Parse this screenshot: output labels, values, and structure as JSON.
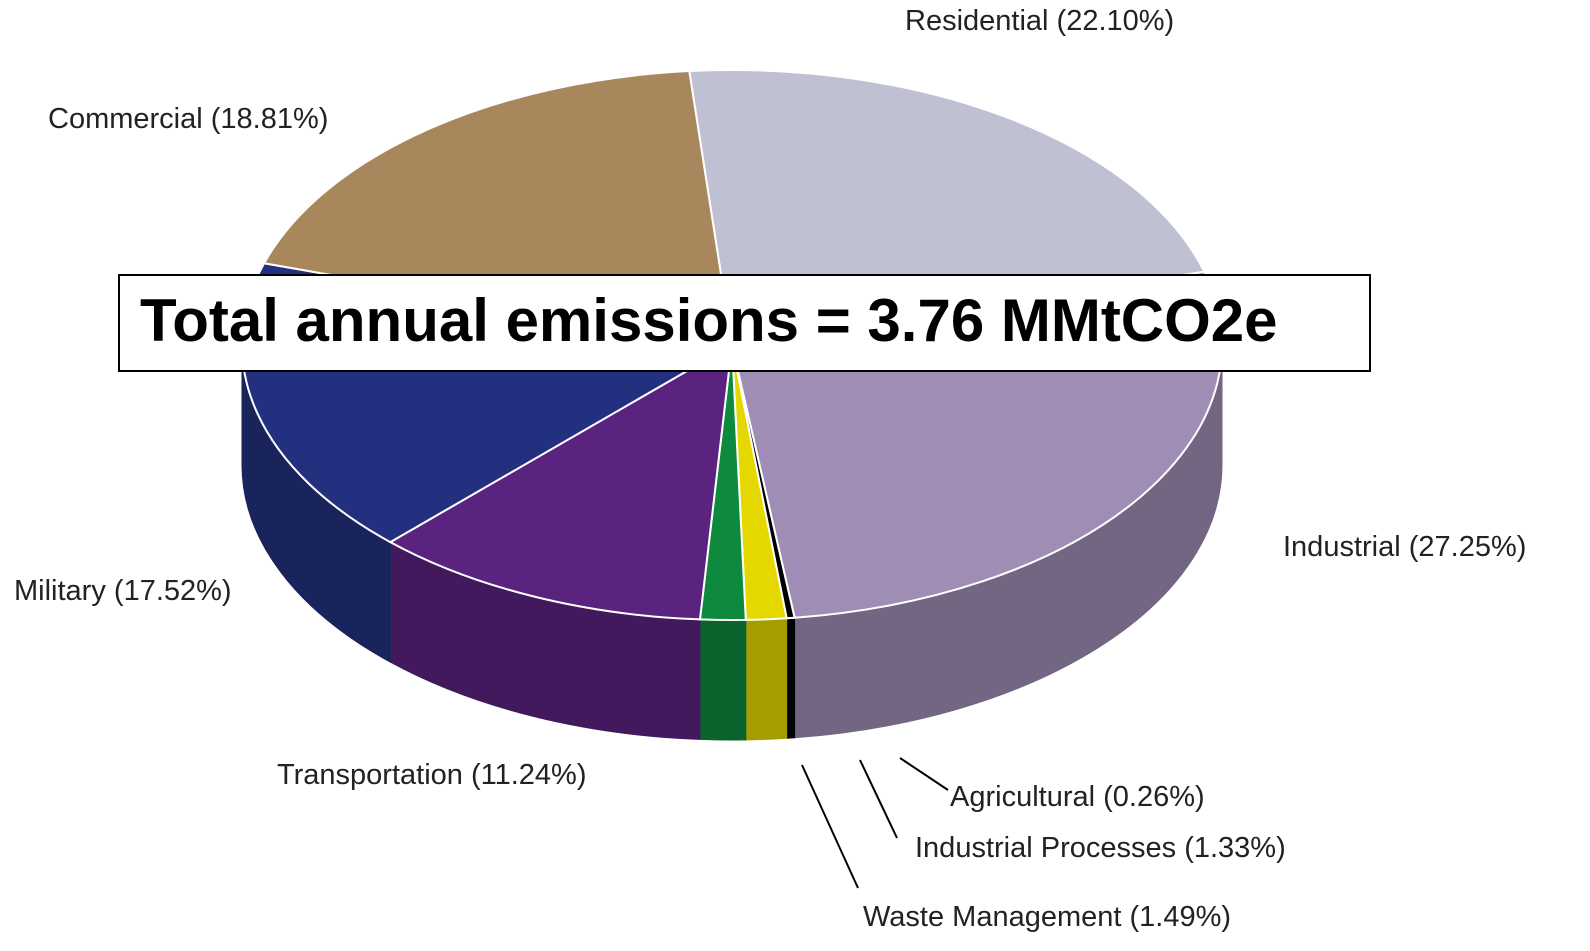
{
  "chart_data": {
    "type": "pie3d",
    "annotation": "Total annual emissions = 3.76 MMtCO2e",
    "categories": [
      "Residential",
      "Industrial",
      "Agricultural",
      "Industrial Processes",
      "Waste Management",
      "Transportation",
      "Military",
      "Commercial"
    ],
    "values": [
      22.1,
      27.25,
      0.26,
      1.33,
      1.49,
      11.24,
      17.52,
      18.81
    ],
    "value_labels": [
      "(22.10%)",
      "(27.25%)",
      "(0.26%)",
      "(1.33%)",
      "(1.49%)",
      "(11.24%)",
      "(17.52%)",
      "(18.81%)"
    ],
    "colors": [
      "#c0c0d3",
      "#a08db6",
      "#000000",
      "#e5d800",
      "#0e8a3e",
      "#5a2380",
      "#233080",
      "#a9875c"
    ]
  }
}
